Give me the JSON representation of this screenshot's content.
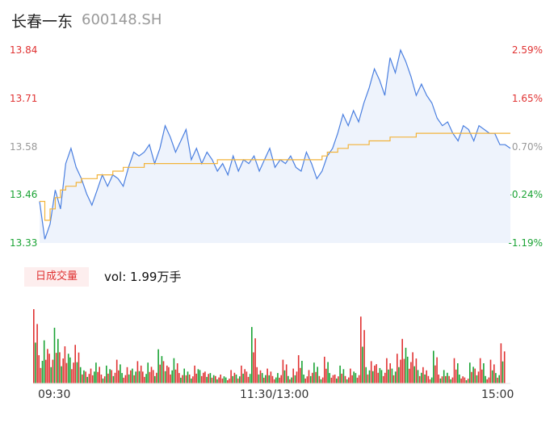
{
  "header": {
    "name": "长春一东",
    "code": "600148.SH"
  },
  "colors": {
    "up": "#e03232",
    "down": "#1aa334",
    "price_line": "#4a7fe0",
    "avg_line": "#f2b33a",
    "flat": "#999999"
  },
  "volume": {
    "tab_label": "日成交量",
    "text": "vol: 1.99万手"
  },
  "chart_data": [
    {
      "type": "line",
      "title": "",
      "ylim": [
        13.33,
        13.84
      ],
      "y_ticks": [
        "13.84",
        "13.71",
        "13.58",
        "13.46",
        "13.33"
      ],
      "y_ticks_right": [
        "2.59%",
        "1.65%",
        "0.70%",
        "-0.24%",
        "-1.19%"
      ],
      "x_ticks": [
        "09:30",
        "11:30/13:00",
        "15:00"
      ],
      "grid": false,
      "series": [
        {
          "values": [
            13.44,
            13.34,
            13.38,
            13.47,
            13.42,
            13.54,
            13.58,
            13.53,
            13.5,
            13.46,
            13.43,
            13.47,
            13.51,
            13.48,
            13.51,
            13.5,
            13.48,
            13.53,
            13.57,
            13.56,
            13.57,
            13.59,
            13.54,
            13.58,
            13.64,
            13.61,
            13.57,
            13.6,
            13.63,
            13.55,
            13.58,
            13.54,
            13.57,
            13.55,
            13.52,
            13.54,
            13.51,
            13.56,
            13.52,
            13.55,
            13.54,
            13.56,
            13.52,
            13.55,
            13.58,
            13.53,
            13.55,
            13.54,
            13.56,
            13.53,
            13.52,
            13.57,
            13.54,
            13.5,
            13.52,
            13.56,
            13.58,
            13.62,
            13.67,
            13.64,
            13.68,
            13.65,
            13.7,
            13.74,
            13.79,
            13.76,
            13.72,
            13.82,
            13.78,
            13.84,
            13.81,
            13.77,
            13.72,
            13.75,
            13.72,
            13.7,
            13.66,
            13.64,
            13.65,
            13.62,
            13.6,
            13.64,
            13.63,
            13.6,
            13.64,
            13.63,
            13.62,
            13.62,
            13.59,
            13.59,
            13.58
          ]
        },
        {
          "values": [
            13.44,
            13.39,
            13.42,
            13.45,
            13.47,
            13.48,
            13.48,
            13.49,
            13.5,
            13.5,
            13.5,
            13.51,
            13.51,
            13.51,
            13.52,
            13.52,
            13.53,
            13.53,
            13.53,
            13.53,
            13.54,
            13.54,
            13.54,
            13.54,
            13.54,
            13.54,
            13.54,
            13.54,
            13.54,
            13.54,
            13.54,
            13.54,
            13.54,
            13.54,
            13.55,
            13.55,
            13.55,
            13.55,
            13.55,
            13.55,
            13.55,
            13.55,
            13.55,
            13.55,
            13.55,
            13.55,
            13.55,
            13.55,
            13.55,
            13.55,
            13.55,
            13.55,
            13.55,
            13.55,
            13.56,
            13.57,
            13.57,
            13.58,
            13.58,
            13.59,
            13.59,
            13.59,
            13.59,
            13.6,
            13.6,
            13.6,
            13.6,
            13.61,
            13.61,
            13.61,
            13.61,
            13.61,
            13.62,
            13.62,
            13.62,
            13.62,
            13.62,
            13.62,
            13.62,
            13.62,
            13.62,
            13.62,
            13.62,
            13.62,
            13.62,
            13.62,
            13.62,
            13.62,
            13.62,
            13.62,
            13.62
          ]
        }
      ]
    },
    {
      "type": "bar",
      "title": "",
      "ylim": [
        0,
        100
      ],
      "values": [
        100,
        38,
        58,
        40,
        75,
        42,
        50,
        35,
        52,
        22,
        16,
        20,
        28,
        12,
        24,
        18,
        32,
        14,
        22,
        20,
        30,
        16,
        28,
        18,
        46,
        30,
        22,
        34,
        14,
        20,
        12,
        24,
        18,
        16,
        14,
        10,
        12,
        8,
        18,
        12,
        24,
        16,
        76,
        22,
        14,
        20,
        10,
        14,
        32,
        10,
        20,
        38,
        12,
        18,
        28,
        10,
        36,
        14,
        12,
        24,
        10,
        20,
        14,
        90,
        22,
        30,
        26,
        18,
        34,
        20,
        40,
        60,
        36,
        42,
        18,
        22,
        10,
        44,
        12,
        18,
        10,
        34,
        12,
        8,
        28,
        20,
        34,
        10,
        32,
        14,
        54
      ]
    }
  ]
}
